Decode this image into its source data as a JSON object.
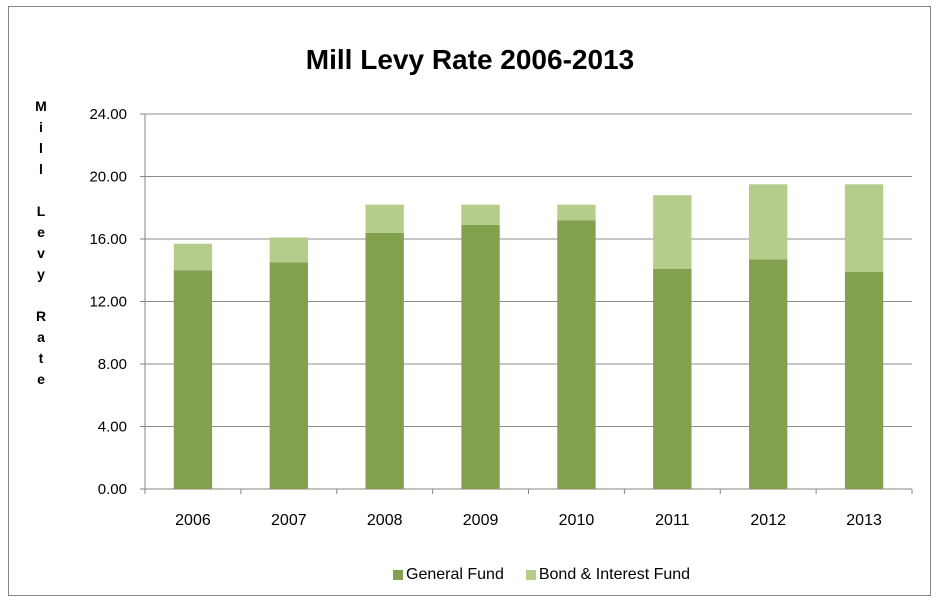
{
  "colors": {
    "general": "#83a04e",
    "bond": "#b5cc8b",
    "grid": "#8c8c8c",
    "axis": "#868686",
    "text": "#000000"
  },
  "chart_data": {
    "type": "bar",
    "stacked": true,
    "title": "Mill Levy Rate 2006-2013",
    "ylabel": "Mill Levy Rate",
    "ylabel_letters": [
      "M",
      "i",
      "l",
      "l",
      "",
      "L",
      "e",
      "v",
      "y",
      "",
      "R",
      "a",
      "t",
      "e"
    ],
    "xlabel": "",
    "ylim": [
      0,
      24
    ],
    "yticks": [
      "0.00",
      "4.00",
      "8.00",
      "12.00",
      "16.00",
      "20.00",
      "24.00"
    ],
    "categories": [
      "2006",
      "2007",
      "2008",
      "2009",
      "2010",
      "2011",
      "2012",
      "2013"
    ],
    "series": [
      {
        "name": "General Fund",
        "color": "#83a04e",
        "values": [
          14.0,
          14.5,
          16.4,
          16.9,
          17.2,
          14.1,
          14.7,
          13.9
        ]
      },
      {
        "name": "Bond & Interest Fund",
        "color": "#b5cc8b",
        "values": [
          1.7,
          1.6,
          1.8,
          1.3,
          1.0,
          4.7,
          4.8,
          5.6
        ]
      }
    ],
    "grid": true,
    "legend_position": "bottom"
  }
}
